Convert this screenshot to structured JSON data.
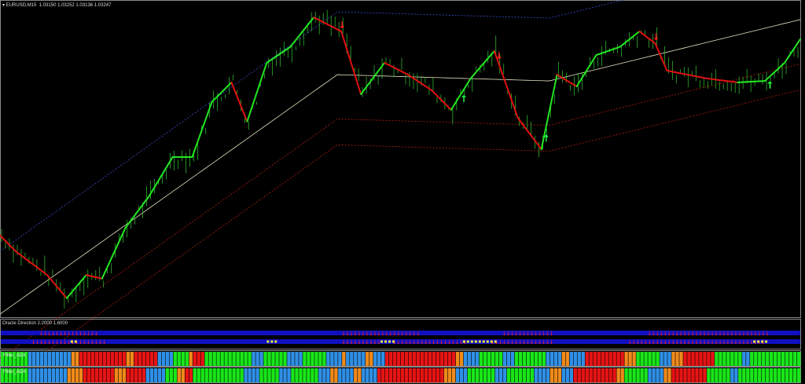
{
  "main_chart": {
    "title": "EURUSD,M15",
    "ohlc": "1.03150 1.03252 1.03136 1.03247",
    "price_range": [
      1.025,
      1.0335
    ],
    "bars": 204,
    "colors": {
      "up_line": "#22e622",
      "down_line": "#e01010",
      "ma": "#e8e0c0",
      "upper_band": "#3a4fd0",
      "lower_band": "#b02010",
      "candle": "#33cc33"
    },
    "signal_line": [
      [
        0,
        1.02713
      ],
      [
        4,
        1.0267
      ],
      [
        12,
        1.02606
      ],
      [
        17,
        1.02543
      ],
      [
        22,
        1.02606
      ],
      [
        26,
        1.02596
      ],
      [
        32,
        1.02734
      ],
      [
        38,
        1.02819
      ],
      [
        44,
        1.02925
      ],
      [
        49,
        1.02925
      ],
      [
        54,
        1.03074
      ],
      [
        59,
        1.03127
      ],
      [
        63,
        1.03021
      ],
      [
        68,
        1.0318
      ],
      [
        74,
        1.03223
      ],
      [
        80,
        1.03303
      ],
      [
        87,
        1.03265
      ],
      [
        92,
        1.03095
      ],
      [
        98,
        1.0318
      ],
      [
        104,
        1.03148
      ],
      [
        110,
        1.03106
      ],
      [
        115,
        1.03053
      ],
      [
        120,
        1.03138
      ],
      [
        126,
        1.03212
      ],
      [
        132,
        1.03031
      ],
      [
        138,
        1.02946
      ],
      [
        142,
        1.03148
      ],
      [
        147,
        1.03116
      ],
      [
        152,
        1.03201
      ],
      [
        158,
        1.03223
      ],
      [
        163,
        1.03265
      ],
      [
        167,
        1.03233
      ],
      [
        170,
        1.03159
      ],
      [
        180,
        1.03138
      ],
      [
        188,
        1.03127
      ],
      [
        195,
        1.03131
      ],
      [
        200,
        1.0318
      ],
      [
        204,
        1.03244
      ]
    ],
    "moving_average": [
      [
        0,
        1.025
      ],
      [
        86,
        1.03148
      ],
      [
        140,
        1.03131
      ],
      [
        204,
        1.03297
      ]
    ],
    "arrows": [
      {
        "bar": 87,
        "dir": "down"
      },
      {
        "bar": 127,
        "dir": "down"
      },
      {
        "bar": 167,
        "dir": "down"
      },
      {
        "bar": 118,
        "dir": "up"
      },
      {
        "bar": 139,
        "dir": "up"
      },
      {
        "bar": 196,
        "dir": "up"
      }
    ]
  },
  "oracle": {
    "label": "Oracle Direction 2.2000 1.6000",
    "row1_down": [
      [
        10,
        24
      ],
      [
        87,
        106
      ],
      [
        128,
        140
      ],
      [
        165,
        195
      ]
    ],
    "row2_down": [
      [
        8,
        26
      ],
      [
        87,
        96
      ],
      [
        100,
        118
      ],
      [
        125,
        140
      ],
      [
        160,
        194
      ]
    ],
    "row2_neutral": [
      [
        18,
        19
      ],
      [
        68,
        70
      ],
      [
        97,
        100
      ],
      [
        118,
        126
      ],
      [
        192,
        195
      ]
    ]
  },
  "filter1": {
    "label": "Filter_ADX",
    "segments": [
      [
        "G",
        7
      ],
      [
        "B",
        11
      ],
      [
        "O",
        2
      ],
      [
        "R",
        12
      ],
      [
        "O",
        2
      ],
      [
        "R",
        6
      ],
      [
        "B",
        4
      ],
      [
        "G",
        4
      ],
      [
        "O",
        1
      ],
      [
        "R",
        3
      ],
      [
        "G",
        12
      ],
      [
        "B",
        3
      ],
      [
        "G",
        6
      ],
      [
        "B",
        4
      ],
      [
        "G",
        6
      ],
      [
        "B",
        4
      ],
      [
        "O",
        1
      ],
      [
        "B",
        5
      ],
      [
        "O",
        2
      ],
      [
        "B",
        3
      ],
      [
        "R",
        18
      ],
      [
        "O",
        2
      ],
      [
        "B",
        4
      ],
      [
        "G",
        6
      ],
      [
        "B",
        3
      ],
      [
        "G",
        8
      ],
      [
        "B",
        4
      ],
      [
        "O",
        2
      ],
      [
        "B",
        4
      ],
      [
        "R",
        10
      ],
      [
        "O",
        3
      ],
      [
        "G",
        6
      ],
      [
        "B",
        3
      ],
      [
        "O",
        3
      ],
      [
        "R",
        8
      ],
      [
        "G",
        7
      ],
      [
        "B",
        2
      ]
    ]
  },
  "filter2": {
    "label": "Filter_ADX",
    "segments": [
      [
        "G",
        7
      ],
      [
        "B",
        10
      ],
      [
        "O",
        4
      ],
      [
        "R",
        8
      ],
      [
        "O",
        3
      ],
      [
        "R",
        5
      ],
      [
        "B",
        5
      ],
      [
        "G",
        3
      ],
      [
        "O",
        2
      ],
      [
        "R",
        2
      ],
      [
        "G",
        13
      ],
      [
        "B",
        4
      ],
      [
        "G",
        5
      ],
      [
        "B",
        3
      ],
      [
        "G",
        7
      ],
      [
        "B",
        3
      ],
      [
        "O",
        2
      ],
      [
        "B",
        4
      ],
      [
        "O",
        2
      ],
      [
        "B",
        4
      ],
      [
        "R",
        17
      ],
      [
        "O",
        3
      ],
      [
        "B",
        3
      ],
      [
        "G",
        7
      ],
      [
        "B",
        3
      ],
      [
        "G",
        7
      ],
      [
        "B",
        4
      ],
      [
        "O",
        3
      ],
      [
        "B",
        3
      ],
      [
        "R",
        11
      ],
      [
        "O",
        2
      ],
      [
        "G",
        6
      ],
      [
        "B",
        4
      ],
      [
        "O",
        2
      ],
      [
        "R",
        9
      ],
      [
        "G",
        6
      ],
      [
        "B",
        2
      ]
    ]
  },
  "palette": {
    "G": "#19e619",
    "B": "#2f8fe6",
    "O": "#f08a1a",
    "R": "#e61414"
  }
}
